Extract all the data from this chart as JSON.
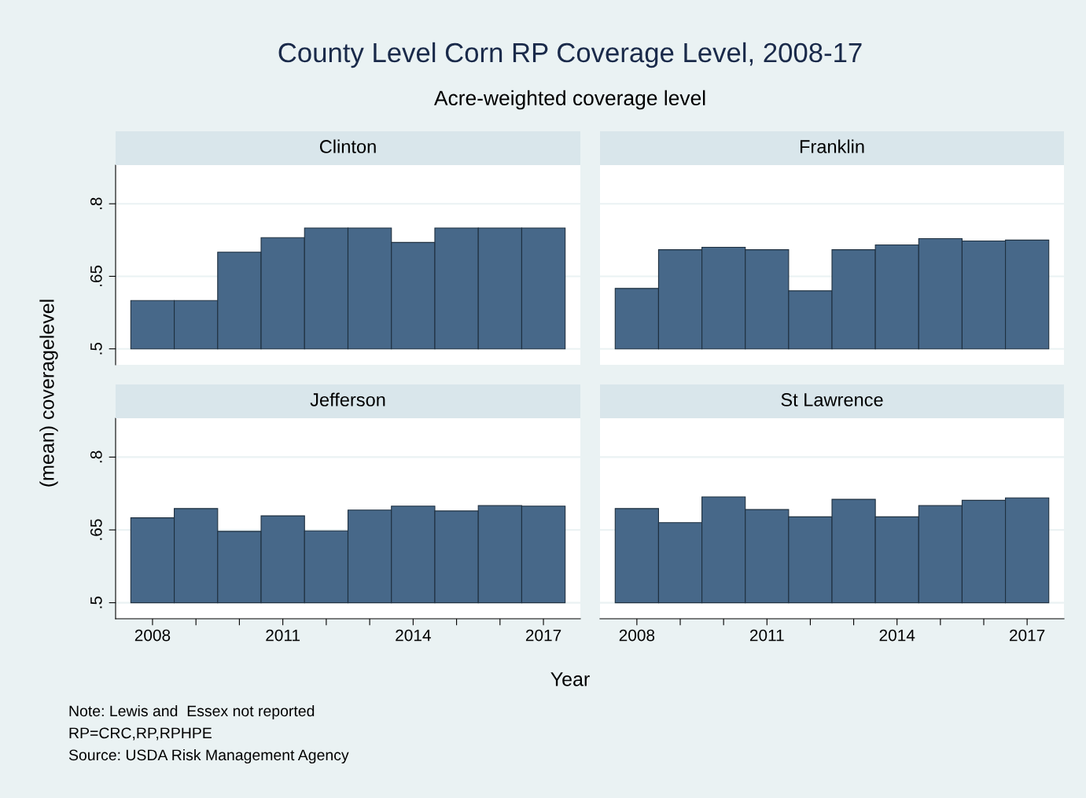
{
  "chart_data": [
    {
      "type": "bar",
      "title": "Clinton",
      "x": [
        2008,
        2009,
        2010,
        2011,
        2012,
        2013,
        2014,
        2015,
        2016,
        2017
      ],
      "base": [
        0.5,
        0.5,
        0.5,
        0.5,
        0.5,
        0.5,
        0.5,
        0.5,
        0.5,
        0.5
      ],
      "values": [
        0.1,
        0.1,
        0.2,
        0.23,
        0.25,
        0.25,
        0.22,
        0.25,
        0.25,
        0.25
      ],
      "color": "#476889",
      "xlim": [
        2007.15,
        2017.85
      ],
      "ylim": [
        0.467,
        0.88
      ],
      "yticks": [
        {
          "value": 0.5,
          "label": ".5"
        },
        {
          "value": 0.65,
          "label": ".65"
        },
        {
          "value": 0.8,
          "label": ".8"
        }
      ],
      "grid": "y",
      "tick_labels": "y",
      "subtitle": "County Level Corn RP Coverage Level, 2008-17\nAcre-weighted coverage level",
      "ylabel": "(mean) coveragelevel",
      "annotations": [
        "Note: Lewis and  Essex not reported",
        "RP=CRC,RP,RPHPE",
        "Source: USDA Risk Management Agency"
      ]
    },
    {
      "type": "bar",
      "title": "Franklin",
      "x": [
        2008,
        2009,
        2010,
        2011,
        2012,
        2013,
        2014,
        2015,
        2016,
        2017
      ],
      "base": [
        0.5,
        0.5,
        0.5,
        0.5,
        0.5,
        0.5,
        0.5,
        0.5,
        0.5,
        0.5
      ],
      "values": [
        0.125,
        0.205,
        0.21,
        0.205,
        0.12,
        0.205,
        0.215,
        0.228,
        0.223,
        0.225
      ],
      "color": "#476889",
      "xlim": [
        2007.15,
        2017.85
      ],
      "ylim": [
        0.467,
        0.88
      ],
      "yticks": [
        {
          "value": 0.5,
          "label": null
        },
        {
          "value": 0.65,
          "label": null
        },
        {
          "value": 0.8,
          "label": null
        }
      ],
      "grid": "y",
      "tick_labels": false
    },
    {
      "type": "bar",
      "title": "Jefferson",
      "x": [
        2008,
        2009,
        2010,
        2011,
        2012,
        2013,
        2014,
        2015,
        2016,
        2017
      ],
      "base": [
        0.5,
        0.5,
        0.5,
        0.5,
        0.5,
        0.5,
        0.5,
        0.5,
        0.5,
        0.5
      ],
      "values": [
        0.175,
        0.194,
        0.147,
        0.179,
        0.148,
        0.191,
        0.199,
        0.189,
        0.2,
        0.199
      ],
      "color": "#476889",
      "xlim": [
        2007.15,
        2017.85
      ],
      "ylim": [
        0.467,
        0.88
      ],
      "xticks": [
        2008,
        {
          "value": 2009,
          "label": null
        },
        {
          "value": 2010,
          "label": null
        },
        2011,
        {
          "value": 2012,
          "label": null
        },
        {
          "value": 2013,
          "label": null
        },
        2014,
        {
          "value": 2015,
          "label": null
        },
        {
          "value": 2016,
          "label": null
        },
        2017
      ],
      "yticks": [
        {
          "value": 0.5,
          "label": ".5"
        },
        {
          "value": 0.65,
          "label": ".65"
        },
        {
          "value": 0.8,
          "label": ".8"
        }
      ],
      "grid": "y",
      "xlabel": "Year"
    },
    {
      "type": "bar",
      "title": "St Lawrence",
      "x": [
        2008,
        2009,
        2010,
        2011,
        2012,
        2013,
        2014,
        2015,
        2016,
        2017
      ],
      "base": [
        0.5,
        0.5,
        0.5,
        0.5,
        0.5,
        0.5,
        0.5,
        0.5,
        0.5,
        0.5
      ],
      "values": [
        0.194,
        0.165,
        0.218,
        0.192,
        0.177,
        0.213,
        0.177,
        0.2,
        0.211,
        0.216
      ],
      "color": "#476889",
      "xlim": [
        2007.15,
        2017.85
      ],
      "ylim": [
        0.467,
        0.88
      ],
      "xticks": [
        2008,
        {
          "value": 2009,
          "label": null
        },
        {
          "value": 2010,
          "label": null
        },
        2011,
        {
          "value": 2012,
          "label": null
        },
        {
          "value": 2013,
          "label": null
        },
        2014,
        {
          "value": 2015,
          "label": null
        },
        {
          "value": 2016,
          "label": null
        },
        2017
      ],
      "yticks": [
        {
          "value": 0.5,
          "label": null
        },
        {
          "value": 0.65,
          "label": null
        },
        {
          "value": 0.8,
          "label": null
        }
      ],
      "grid": "y",
      "tick_labels": "x"
    }
  ]
}
